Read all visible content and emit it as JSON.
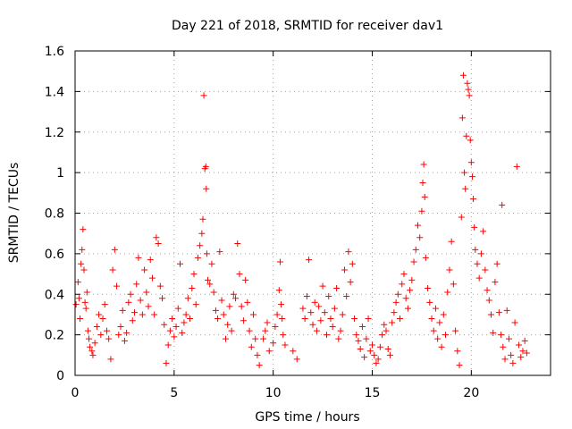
{
  "chart_data": {
    "type": "scatter",
    "title": "Day 221 of 2018, SRMTID for receiver dav1",
    "xlabel": "GPS time / hours",
    "ylabel": "SRMTID / TECUs",
    "xlim": [
      0,
      24
    ],
    "ylim": [
      0,
      1.6
    ],
    "xticks": [
      0,
      5,
      10,
      15,
      20
    ],
    "yticks": [
      0,
      0.2,
      0.4,
      0.6,
      0.8,
      1.0,
      1.2,
      1.4,
      1.6
    ],
    "xtick_labels": [
      "0",
      "5",
      "10",
      "15",
      "20"
    ],
    "ytick_labels": [
      "0",
      "0.2",
      "0.4",
      "0.6",
      "0.8",
      "1",
      "1.2",
      "1.4",
      "1.6"
    ],
    "grid": true,
    "marker": "+",
    "color": "#ff0000",
    "series": [
      {
        "name": "SRMTID",
        "points": [
          [
            0.05,
            0.35
          ],
          [
            0.15,
            0.46
          ],
          [
            0.2,
            0.38
          ],
          [
            0.25,
            0.28
          ],
          [
            0.3,
            0.55
          ],
          [
            0.35,
            0.62
          ],
          [
            0.4,
            0.72
          ],
          [
            0.45,
            0.52
          ],
          [
            0.5,
            0.36
          ],
          [
            0.55,
            0.33
          ],
          [
            0.6,
            0.41
          ],
          [
            0.65,
            0.22
          ],
          [
            0.7,
            0.18
          ],
          [
            0.75,
            0.14
          ],
          [
            0.85,
            0.12
          ],
          [
            0.9,
            0.1
          ],
          [
            1.0,
            0.16
          ],
          [
            1.1,
            0.24
          ],
          [
            1.2,
            0.3
          ],
          [
            1.3,
            0.2
          ],
          [
            1.4,
            0.28
          ],
          [
            1.5,
            0.35
          ],
          [
            1.6,
            0.22
          ],
          [
            1.7,
            0.18
          ],
          [
            1.8,
            0.08
          ],
          [
            1.9,
            0.52
          ],
          [
            2.0,
            0.62
          ],
          [
            2.1,
            0.44
          ],
          [
            2.2,
            0.2
          ],
          [
            2.3,
            0.24
          ],
          [
            2.4,
            0.32
          ],
          [
            2.5,
            0.17
          ],
          [
            2.6,
            0.21
          ],
          [
            2.7,
            0.36
          ],
          [
            2.8,
            0.4
          ],
          [
            2.9,
            0.27
          ],
          [
            3.0,
            0.31
          ],
          [
            3.1,
            0.45
          ],
          [
            3.2,
            0.58
          ],
          [
            3.3,
            0.37
          ],
          [
            3.4,
            0.3
          ],
          [
            3.5,
            0.52
          ],
          [
            3.6,
            0.41
          ],
          [
            3.7,
            0.34
          ],
          [
            3.8,
            0.57
          ],
          [
            3.9,
            0.48
          ],
          [
            4.0,
            0.3
          ],
          [
            4.1,
            0.68
          ],
          [
            4.2,
            0.65
          ],
          [
            4.3,
            0.44
          ],
          [
            4.4,
            0.38
          ],
          [
            4.5,
            0.25
          ],
          [
            4.6,
            0.06
          ],
          [
            4.7,
            0.15
          ],
          [
            4.8,
            0.22
          ],
          [
            4.9,
            0.28
          ],
          [
            5.0,
            0.19
          ],
          [
            5.1,
            0.24
          ],
          [
            5.2,
            0.33
          ],
          [
            5.3,
            0.55
          ],
          [
            5.4,
            0.21
          ],
          [
            5.5,
            0.26
          ],
          [
            5.6,
            0.3
          ],
          [
            5.7,
            0.38
          ],
          [
            5.8,
            0.28
          ],
          [
            5.9,
            0.43
          ],
          [
            6.0,
            0.5
          ],
          [
            6.1,
            0.35
          ],
          [
            6.2,
            0.58
          ],
          [
            6.3,
            0.64
          ],
          [
            6.4,
            0.7
          ],
          [
            6.45,
            0.77
          ],
          [
            6.5,
            1.38
          ],
          [
            6.55,
            1.02
          ],
          [
            6.6,
            1.03
          ],
          [
            6.62,
            0.92
          ],
          [
            6.65,
            0.6
          ],
          [
            6.7,
            0.47
          ],
          [
            6.8,
            0.45
          ],
          [
            6.9,
            0.55
          ],
          [
            7.0,
            0.41
          ],
          [
            7.1,
            0.32
          ],
          [
            7.2,
            0.28
          ],
          [
            7.3,
            0.61
          ],
          [
            7.4,
            0.37
          ],
          [
            7.5,
            0.3
          ],
          [
            7.6,
            0.18
          ],
          [
            7.7,
            0.25
          ],
          [
            7.8,
            0.34
          ],
          [
            7.9,
            0.22
          ],
          [
            8.0,
            0.4
          ],
          [
            8.1,
            0.38
          ],
          [
            8.2,
            0.65
          ],
          [
            8.3,
            0.5
          ],
          [
            8.4,
            0.34
          ],
          [
            8.5,
            0.27
          ],
          [
            8.6,
            0.47
          ],
          [
            8.7,
            0.36
          ],
          [
            8.8,
            0.22
          ],
          [
            8.9,
            0.14
          ],
          [
            9.0,
            0.3
          ],
          [
            9.1,
            0.18
          ],
          [
            9.2,
            0.1
          ],
          [
            9.3,
            0.05
          ],
          [
            9.5,
            0.18
          ],
          [
            9.6,
            0.22
          ],
          [
            9.7,
            0.26
          ],
          [
            9.8,
            0.12
          ],
          [
            10.0,
            0.16
          ],
          [
            10.1,
            0.24
          ],
          [
            10.2,
            0.3
          ],
          [
            10.3,
            0.42
          ],
          [
            10.35,
            0.56
          ],
          [
            10.4,
            0.35
          ],
          [
            10.45,
            0.28
          ],
          [
            10.5,
            0.2
          ],
          [
            10.6,
            0.15
          ],
          [
            11.0,
            0.12
          ],
          [
            11.2,
            0.08
          ],
          [
            11.5,
            0.33
          ],
          [
            11.6,
            0.28
          ],
          [
            11.7,
            0.39
          ],
          [
            11.8,
            0.57
          ],
          [
            11.9,
            0.31
          ],
          [
            12.0,
            0.25
          ],
          [
            12.1,
            0.36
          ],
          [
            12.2,
            0.22
          ],
          [
            12.3,
            0.34
          ],
          [
            12.4,
            0.27
          ],
          [
            12.5,
            0.44
          ],
          [
            12.6,
            0.31
          ],
          [
            12.7,
            0.2
          ],
          [
            12.8,
            0.39
          ],
          [
            12.9,
            0.28
          ],
          [
            13.0,
            0.24
          ],
          [
            13.1,
            0.33
          ],
          [
            13.2,
            0.43
          ],
          [
            13.3,
            0.18
          ],
          [
            13.4,
            0.22
          ],
          [
            13.5,
            0.3
          ],
          [
            13.6,
            0.52
          ],
          [
            13.7,
            0.39
          ],
          [
            13.8,
            0.61
          ],
          [
            13.9,
            0.46
          ],
          [
            14.0,
            0.55
          ],
          [
            14.1,
            0.28
          ],
          [
            14.2,
            0.2
          ],
          [
            14.3,
            0.17
          ],
          [
            14.4,
            0.13
          ],
          [
            14.5,
            0.24
          ],
          [
            14.6,
            0.09
          ],
          [
            14.7,
            0.18
          ],
          [
            14.8,
            0.28
          ],
          [
            14.9,
            0.12
          ],
          [
            15.0,
            0.15
          ],
          [
            15.1,
            0.1
          ],
          [
            15.2,
            0.06
          ],
          [
            15.3,
            0.08
          ],
          [
            15.4,
            0.14
          ],
          [
            15.5,
            0.2
          ],
          [
            15.6,
            0.25
          ],
          [
            15.7,
            0.22
          ],
          [
            15.8,
            0.13
          ],
          [
            15.9,
            0.1
          ],
          [
            16.0,
            0.26
          ],
          [
            16.1,
            0.31
          ],
          [
            16.2,
            0.36
          ],
          [
            16.3,
            0.4
          ],
          [
            16.4,
            0.28
          ],
          [
            16.5,
            0.45
          ],
          [
            16.6,
            0.5
          ],
          [
            16.7,
            0.38
          ],
          [
            16.8,
            0.33
          ],
          [
            16.9,
            0.42
          ],
          [
            17.0,
            0.47
          ],
          [
            17.1,
            0.56
          ],
          [
            17.2,
            0.62
          ],
          [
            17.3,
            0.74
          ],
          [
            17.4,
            0.68
          ],
          [
            17.5,
            0.81
          ],
          [
            17.55,
            0.95
          ],
          [
            17.6,
            1.04
          ],
          [
            17.65,
            0.88
          ],
          [
            17.7,
            0.58
          ],
          [
            17.8,
            0.43
          ],
          [
            17.9,
            0.36
          ],
          [
            18.0,
            0.28
          ],
          [
            18.1,
            0.22
          ],
          [
            18.2,
            0.33
          ],
          [
            18.3,
            0.18
          ],
          [
            18.4,
            0.26
          ],
          [
            18.5,
            0.14
          ],
          [
            18.6,
            0.3
          ],
          [
            18.7,
            0.2
          ],
          [
            18.8,
            0.41
          ],
          [
            18.9,
            0.52
          ],
          [
            19.0,
            0.66
          ],
          [
            19.1,
            0.45
          ],
          [
            19.2,
            0.22
          ],
          [
            19.3,
            0.12
          ],
          [
            19.4,
            0.05
          ],
          [
            19.5,
            0.78
          ],
          [
            19.55,
            1.27
          ],
          [
            19.6,
            1.48
          ],
          [
            19.65,
            1.0
          ],
          [
            19.7,
            0.92
          ],
          [
            19.75,
            1.18
          ],
          [
            19.8,
            1.44
          ],
          [
            19.85,
            1.41
          ],
          [
            19.9,
            1.38
          ],
          [
            19.95,
            1.16
          ],
          [
            20.0,
            1.05
          ],
          [
            20.05,
            0.98
          ],
          [
            20.1,
            0.87
          ],
          [
            20.15,
            0.73
          ],
          [
            20.2,
            0.62
          ],
          [
            20.3,
            0.55
          ],
          [
            20.4,
            0.48
          ],
          [
            20.5,
            0.6
          ],
          [
            20.6,
            0.71
          ],
          [
            20.7,
            0.52
          ],
          [
            20.8,
            0.42
          ],
          [
            20.9,
            0.37
          ],
          [
            21.0,
            0.3
          ],
          [
            21.1,
            0.21
          ],
          [
            21.2,
            0.46
          ],
          [
            21.3,
            0.55
          ],
          [
            21.4,
            0.31
          ],
          [
            21.5,
            0.2
          ],
          [
            21.55,
            0.84
          ],
          [
            21.6,
            0.14
          ],
          [
            21.7,
            0.08
          ],
          [
            21.8,
            0.32
          ],
          [
            21.9,
            0.18
          ],
          [
            22.0,
            0.1
          ],
          [
            22.1,
            0.06
          ],
          [
            22.2,
            0.26
          ],
          [
            22.3,
            1.03
          ],
          [
            22.4,
            0.15
          ],
          [
            22.5,
            0.09
          ],
          [
            22.6,
            0.12
          ],
          [
            22.7,
            0.17
          ],
          [
            22.8,
            0.11
          ]
        ]
      }
    ]
  }
}
